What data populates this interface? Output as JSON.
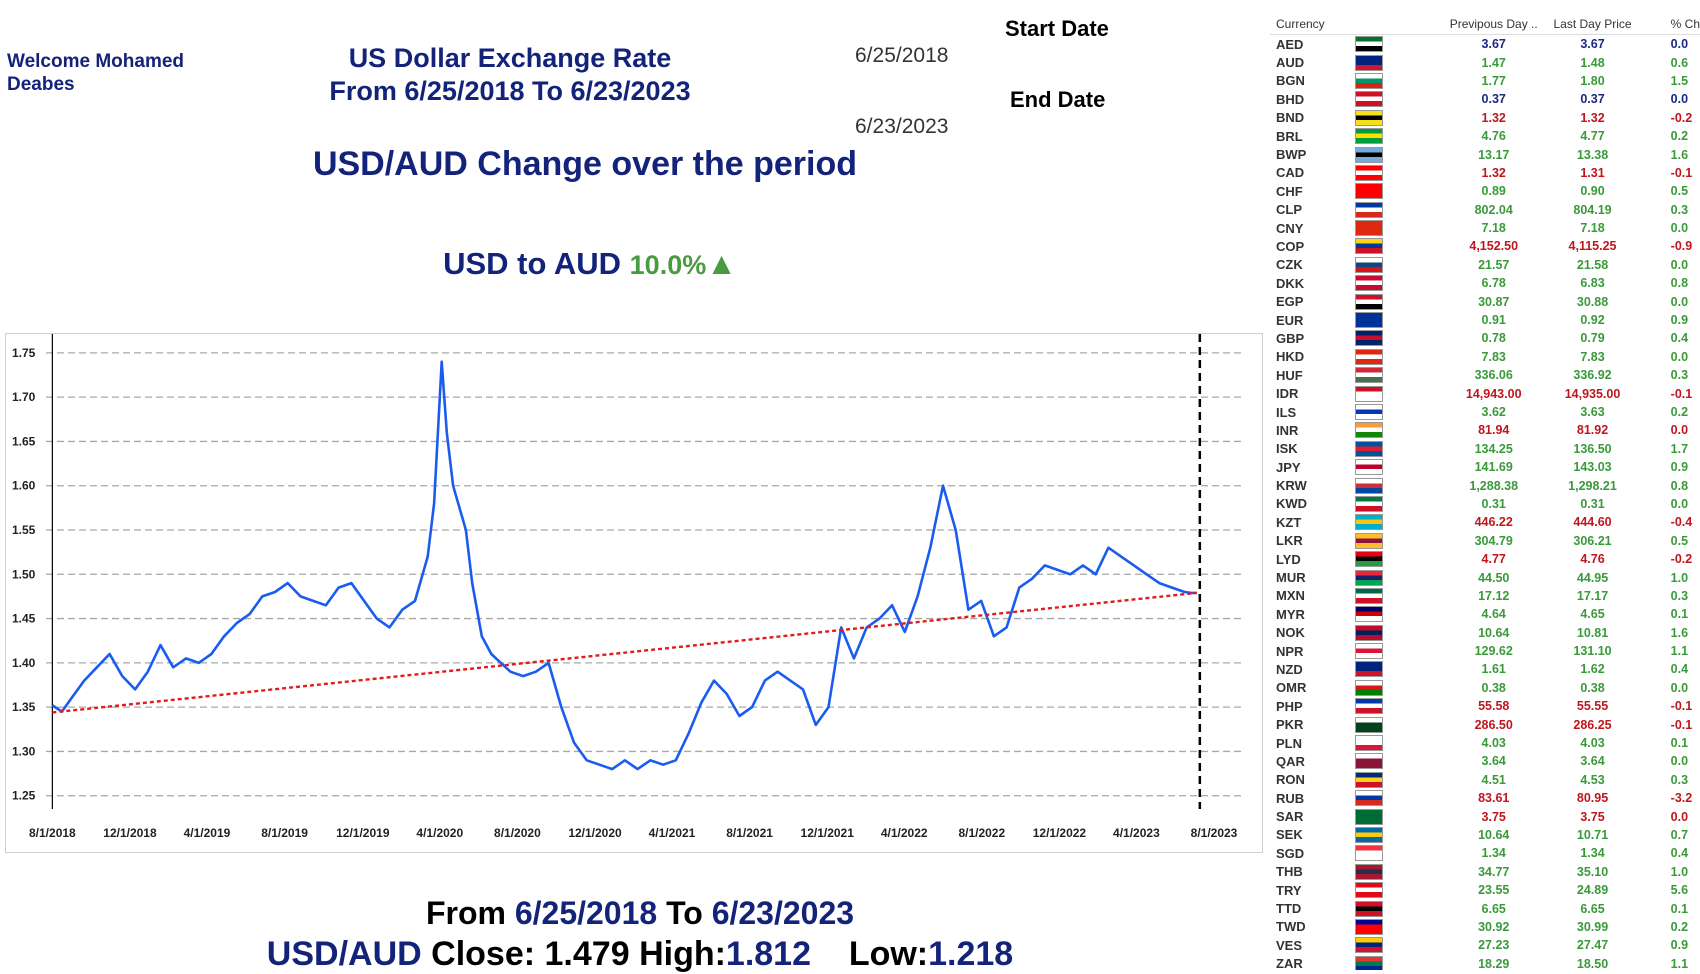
{
  "header": {
    "welcome": "Welcome Mohamed Deabes",
    "title_line1": "US Dollar Exchange Rate",
    "title_line2": "From 6/25/2018 To 6/23/2023",
    "start_label": "Start Date",
    "start_value": "6/25/2018",
    "end_label": "End Date",
    "end_value": "6/23/2023",
    "subtitle": "USD/AUD  Change over the period",
    "change_label": "USD to AUD",
    "change_value": "10.0%",
    "change_arrow": "▲"
  },
  "summary": {
    "from_word": "From",
    "from_date": "6/25/2018",
    "to_word": "To",
    "to_date": "6/23/2023",
    "pair": "USD/AUD",
    "close_label": "Close:",
    "close_value": "1.479",
    "high_label": "High:",
    "high_value": "1.812",
    "low_label": "Low:",
    "low_value": "1.218"
  },
  "colors": {
    "line": "#1a5cf0",
    "trend": "#e51b1b",
    "up": "#3a9a3a",
    "down": "#c0161d",
    "navy": "#14237a"
  },
  "chart_data": {
    "type": "line",
    "title": "USD/AUD",
    "xlabel": "",
    "ylabel": "",
    "ylim": [
      1.235,
      1.76
    ],
    "yticks": [
      1.25,
      1.3,
      1.35,
      1.4,
      1.45,
      1.5,
      1.55,
      1.6,
      1.65,
      1.7,
      1.75
    ],
    "ytick_labels": [
      "1.25",
      "1.30",
      "1.35",
      "1.40",
      "1.45",
      "1.50",
      "1.55",
      "1.60",
      "1.65",
      "1.70",
      "1.75"
    ],
    "xlim_days": [
      -10,
      1870
    ],
    "xticks_days": [
      0,
      122,
      243,
      365,
      488,
      609,
      731,
      853,
      974,
      1096,
      1218,
      1339,
      1461,
      1583,
      1704,
      1826
    ],
    "xtick_labels": [
      "8/1/2018",
      "12/1/2018",
      "4/1/2019",
      "8/1/2019",
      "12/1/2019",
      "4/1/2020",
      "8/1/2020",
      "12/1/2020",
      "4/1/2021",
      "8/1/2021",
      "12/1/2021",
      "4/1/2022",
      "8/1/2022",
      "12/1/2022",
      "4/1/2023",
      "8/1/2023"
    ],
    "series": [
      {
        "name": "USD/AUD",
        "x_days": [
          0,
          15,
          30,
          50,
          70,
          90,
          110,
          130,
          150,
          170,
          190,
          210,
          230,
          250,
          270,
          290,
          310,
          330,
          350,
          370,
          390,
          410,
          430,
          450,
          470,
          490,
          510,
          530,
          550,
          570,
          590,
          600,
          612,
          620,
          630,
          640,
          650,
          660,
          675,
          690,
          705,
          720,
          740,
          760,
          780,
          800,
          820,
          840,
          860,
          880,
          900,
          920,
          940,
          960,
          980,
          1000,
          1020,
          1040,
          1060,
          1080,
          1100,
          1120,
          1140,
          1160,
          1180,
          1200,
          1220,
          1240,
          1260,
          1280,
          1300,
          1320,
          1340,
          1360,
          1380,
          1400,
          1420,
          1440,
          1460,
          1480,
          1500,
          1520,
          1540,
          1560,
          1580,
          1600,
          1620,
          1640,
          1660,
          1680,
          1700,
          1720,
          1740,
          1760,
          1780,
          1790,
          1799
        ],
        "values": [
          1.352,
          1.345,
          1.36,
          1.38,
          1.395,
          1.41,
          1.385,
          1.37,
          1.39,
          1.42,
          1.395,
          1.405,
          1.4,
          1.41,
          1.43,
          1.445,
          1.455,
          1.475,
          1.48,
          1.49,
          1.475,
          1.47,
          1.465,
          1.485,
          1.49,
          1.47,
          1.45,
          1.44,
          1.46,
          1.47,
          1.52,
          1.58,
          1.74,
          1.66,
          1.6,
          1.575,
          1.55,
          1.49,
          1.43,
          1.41,
          1.4,
          1.39,
          1.385,
          1.39,
          1.4,
          1.35,
          1.31,
          1.29,
          1.285,
          1.28,
          1.29,
          1.28,
          1.29,
          1.285,
          1.29,
          1.32,
          1.355,
          1.38,
          1.365,
          1.34,
          1.35,
          1.38,
          1.39,
          1.38,
          1.37,
          1.33,
          1.35,
          1.44,
          1.405,
          1.44,
          1.45,
          1.465,
          1.435,
          1.475,
          1.53,
          1.6,
          1.55,
          1.46,
          1.47,
          1.43,
          1.44,
          1.485,
          1.495,
          1.51,
          1.505,
          1.5,
          1.51,
          1.5,
          1.53,
          1.52,
          1.51,
          1.5,
          1.49,
          1.485,
          1.48,
          1.479,
          1.479
        ]
      },
      {
        "name": "Trend",
        "x_days": [
          0,
          1799
        ],
        "values": [
          1.344,
          1.479
        ]
      }
    ]
  },
  "table": {
    "headers": [
      "Currency",
      "Previpous Day ..",
      "Last Day Price",
      "% Ch"
    ],
    "rows": [
      {
        "code": "AED",
        "prev": "3.67",
        "last": "3.67",
        "pct": "0.0",
        "dir": "flat",
        "flag": [
          "#00732f",
          "#ffffff",
          "#000000"
        ]
      },
      {
        "code": "AUD",
        "prev": "1.47",
        "last": "1.48",
        "pct": "0.6",
        "dir": "up",
        "flag": [
          "#00247d",
          "#00247d",
          "#cf142b"
        ]
      },
      {
        "code": "BGN",
        "prev": "1.77",
        "last": "1.80",
        "pct": "1.5",
        "dir": "up",
        "flag": [
          "#ffffff",
          "#00966e",
          "#d62612"
        ]
      },
      {
        "code": "BHD",
        "prev": "0.37",
        "last": "0.37",
        "pct": "0.0",
        "dir": "flat",
        "flag": [
          "#ce1126",
          "#ffffff",
          "#ce1126"
        ]
      },
      {
        "code": "BND",
        "prev": "1.32",
        "last": "1.32",
        "pct": "-0.2",
        "dir": "down",
        "flag": [
          "#f7e017",
          "#000000",
          "#f7e017"
        ]
      },
      {
        "code": "BRL",
        "prev": "4.76",
        "last": "4.77",
        "pct": "0.2",
        "dir": "up",
        "flag": [
          "#009c3b",
          "#ffdf00",
          "#009c3b"
        ]
      },
      {
        "code": "BWP",
        "prev": "13.17",
        "last": "13.38",
        "pct": "1.6",
        "dir": "up",
        "flag": [
          "#75aadb",
          "#000000",
          "#75aadb"
        ]
      },
      {
        "code": "CAD",
        "prev": "1.32",
        "last": "1.31",
        "pct": "-0.1",
        "dir": "down",
        "flag": [
          "#ff0000",
          "#ffffff",
          "#ff0000"
        ]
      },
      {
        "code": "CHF",
        "prev": "0.89",
        "last": "0.90",
        "pct": "0.5",
        "dir": "up",
        "flag": [
          "#ff0000",
          "#ff0000",
          "#ff0000"
        ]
      },
      {
        "code": "CLP",
        "prev": "802.04",
        "last": "804.19",
        "pct": "0.3",
        "dir": "up",
        "flag": [
          "#0039a6",
          "#ffffff",
          "#d52b1e"
        ]
      },
      {
        "code": "CNY",
        "prev": "7.18",
        "last": "7.18",
        "pct": "0.0",
        "dir": "up",
        "flag": [
          "#de2910",
          "#de2910",
          "#de2910"
        ]
      },
      {
        "code": "COP",
        "prev": "4,152.50",
        "last": "4,115.25",
        "pct": "-0.9",
        "dir": "down",
        "flag": [
          "#fcd116",
          "#003893",
          "#ce1126"
        ]
      },
      {
        "code": "CZK",
        "prev": "21.57",
        "last": "21.58",
        "pct": "0.0",
        "dir": "up",
        "flag": [
          "#ffffff",
          "#11457e",
          "#d7141a"
        ]
      },
      {
        "code": "DKK",
        "prev": "6.78",
        "last": "6.83",
        "pct": "0.8",
        "dir": "up",
        "flag": [
          "#c60c30",
          "#ffffff",
          "#c60c30"
        ]
      },
      {
        "code": "EGP",
        "prev": "30.87",
        "last": "30.88",
        "pct": "0.0",
        "dir": "up",
        "flag": [
          "#ce1126",
          "#ffffff",
          "#000000"
        ]
      },
      {
        "code": "EUR",
        "prev": "0.91",
        "last": "0.92",
        "pct": "0.9",
        "dir": "up",
        "flag": [
          "#003399",
          "#003399",
          "#003399"
        ]
      },
      {
        "code": "GBP",
        "prev": "0.78",
        "last": "0.79",
        "pct": "0.4",
        "dir": "up",
        "flag": [
          "#012169",
          "#c8102e",
          "#012169"
        ]
      },
      {
        "code": "HKD",
        "prev": "7.83",
        "last": "7.83",
        "pct": "0.0",
        "dir": "up",
        "flag": [
          "#de2910",
          "#ffffff",
          "#de2910"
        ]
      },
      {
        "code": "HUF",
        "prev": "336.06",
        "last": "336.92",
        "pct": "0.3",
        "dir": "up",
        "flag": [
          "#ce2939",
          "#ffffff",
          "#477050"
        ]
      },
      {
        "code": "IDR",
        "prev": "14,943.00",
        "last": "14,935.00",
        "pct": "-0.1",
        "dir": "down",
        "flag": [
          "#ce1126",
          "#ffffff",
          "#ffffff"
        ]
      },
      {
        "code": "ILS",
        "prev": "3.62",
        "last": "3.63",
        "pct": "0.2",
        "dir": "up",
        "flag": [
          "#ffffff",
          "#0038b8",
          "#ffffff"
        ]
      },
      {
        "code": "INR",
        "prev": "81.94",
        "last": "81.92",
        "pct": "0.0",
        "dir": "down",
        "flag": [
          "#ff9933",
          "#ffffff",
          "#138808"
        ]
      },
      {
        "code": "ISK",
        "prev": "134.25",
        "last": "136.50",
        "pct": "1.7",
        "dir": "up",
        "flag": [
          "#02529c",
          "#dc1e35",
          "#02529c"
        ]
      },
      {
        "code": "JPY",
        "prev": "141.69",
        "last": "143.03",
        "pct": "0.9",
        "dir": "up",
        "flag": [
          "#ffffff",
          "#bc002d",
          "#ffffff"
        ]
      },
      {
        "code": "KRW",
        "prev": "1,288.38",
        "last": "1,298.21",
        "pct": "0.8",
        "dir": "up",
        "flag": [
          "#ffffff",
          "#cd2e3a",
          "#0047a0"
        ]
      },
      {
        "code": "KWD",
        "prev": "0.31",
        "last": "0.31",
        "pct": "0.0",
        "dir": "up",
        "flag": [
          "#007a3d",
          "#ffffff",
          "#ce1126"
        ]
      },
      {
        "code": "KZT",
        "prev": "446.22",
        "last": "444.60",
        "pct": "-0.4",
        "dir": "down",
        "flag": [
          "#00afca",
          "#fec50c",
          "#00afca"
        ]
      },
      {
        "code": "LKR",
        "prev": "304.79",
        "last": "306.21",
        "pct": "0.5",
        "dir": "up",
        "flag": [
          "#ffbe29",
          "#8d153a",
          "#ffbe29"
        ]
      },
      {
        "code": "LYD",
        "prev": "4.77",
        "last": "4.76",
        "pct": "-0.2",
        "dir": "down",
        "flag": [
          "#e70013",
          "#000000",
          "#239e46"
        ]
      },
      {
        "code": "MUR",
        "prev": "44.50",
        "last": "44.95",
        "pct": "1.0",
        "dir": "up",
        "flag": [
          "#ea2839",
          "#1a206d",
          "#00a551"
        ]
      },
      {
        "code": "MXN",
        "prev": "17.12",
        "last": "17.17",
        "pct": "0.3",
        "dir": "up",
        "flag": [
          "#006847",
          "#ffffff",
          "#ce1126"
        ]
      },
      {
        "code": "MYR",
        "prev": "4.64",
        "last": "4.65",
        "pct": "0.1",
        "dir": "up",
        "flag": [
          "#010066",
          "#cc0001",
          "#ffffff"
        ]
      },
      {
        "code": "NOK",
        "prev": "10.64",
        "last": "10.81",
        "pct": "1.6",
        "dir": "up",
        "flag": [
          "#ba0c2f",
          "#00205b",
          "#ba0c2f"
        ]
      },
      {
        "code": "NPR",
        "prev": "129.62",
        "last": "131.10",
        "pct": "1.1",
        "dir": "up",
        "flag": [
          "#ffffff",
          "#dc143c",
          "#ffffff"
        ]
      },
      {
        "code": "NZD",
        "prev": "1.61",
        "last": "1.62",
        "pct": "0.4",
        "dir": "up",
        "flag": [
          "#00247d",
          "#00247d",
          "#cc142b"
        ]
      },
      {
        "code": "OMR",
        "prev": "0.38",
        "last": "0.38",
        "pct": "0.0",
        "dir": "up",
        "flag": [
          "#ffffff",
          "#db161b",
          "#008000"
        ]
      },
      {
        "code": "PHP",
        "prev": "55.58",
        "last": "55.55",
        "pct": "-0.1",
        "dir": "down",
        "flag": [
          "#0038a8",
          "#ffffff",
          "#ce1126"
        ]
      },
      {
        "code": "PKR",
        "prev": "286.50",
        "last": "286.25",
        "pct": "-0.1",
        "dir": "down",
        "flag": [
          "#ffffff",
          "#01411c",
          "#01411c"
        ]
      },
      {
        "code": "PLN",
        "prev": "4.03",
        "last": "4.03",
        "pct": "0.1",
        "dir": "up",
        "flag": [
          "#ffffff",
          "#ffffff",
          "#dc143c"
        ]
      },
      {
        "code": "QAR",
        "prev": "3.64",
        "last": "3.64",
        "pct": "0.0",
        "dir": "up",
        "flag": [
          "#ffffff",
          "#8a1538",
          "#8a1538"
        ]
      },
      {
        "code": "RON",
        "prev": "4.51",
        "last": "4.53",
        "pct": "0.3",
        "dir": "up",
        "flag": [
          "#002b7f",
          "#fcd116",
          "#ce1126"
        ]
      },
      {
        "code": "RUB",
        "prev": "83.61",
        "last": "80.95",
        "pct": "-3.2",
        "dir": "down",
        "flag": [
          "#ffffff",
          "#0039a6",
          "#d52b1e"
        ]
      },
      {
        "code": "SAR",
        "prev": "3.75",
        "last": "3.75",
        "pct": "0.0",
        "dir": "down",
        "flag": [
          "#006c35",
          "#006c35",
          "#006c35"
        ]
      },
      {
        "code": "SEK",
        "prev": "10.64",
        "last": "10.71",
        "pct": "0.7",
        "dir": "up",
        "flag": [
          "#006aa7",
          "#fecc00",
          "#006aa7"
        ]
      },
      {
        "code": "SGD",
        "prev": "1.34",
        "last": "1.34",
        "pct": "0.4",
        "dir": "up",
        "flag": [
          "#ef3340",
          "#ffffff",
          "#ffffff"
        ]
      },
      {
        "code": "THB",
        "prev": "34.77",
        "last": "35.10",
        "pct": "1.0",
        "dir": "up",
        "flag": [
          "#a51931",
          "#2d2a4a",
          "#a51931"
        ]
      },
      {
        "code": "TRY",
        "prev": "23.55",
        "last": "24.89",
        "pct": "5.6",
        "dir": "up",
        "flag": [
          "#e30a17",
          "#ffffff",
          "#e30a17"
        ]
      },
      {
        "code": "TTD",
        "prev": "6.65",
        "last": "6.65",
        "pct": "0.1",
        "dir": "up",
        "flag": [
          "#ce1126",
          "#000000",
          "#ce1126"
        ]
      },
      {
        "code": "TWD",
        "prev": "30.92",
        "last": "30.99",
        "pct": "0.2",
        "dir": "up",
        "flag": [
          "#000095",
          "#fe0000",
          "#fe0000"
        ]
      },
      {
        "code": "VES",
        "prev": "27.23",
        "last": "27.47",
        "pct": "0.9",
        "dir": "up",
        "flag": [
          "#ffcc00",
          "#00247d",
          "#cf142b"
        ]
      },
      {
        "code": "ZAR",
        "prev": "18.29",
        "last": "18.50",
        "pct": "1.1",
        "dir": "up",
        "flag": [
          "#de3831",
          "#007a4d",
          "#002395"
        ]
      }
    ]
  }
}
